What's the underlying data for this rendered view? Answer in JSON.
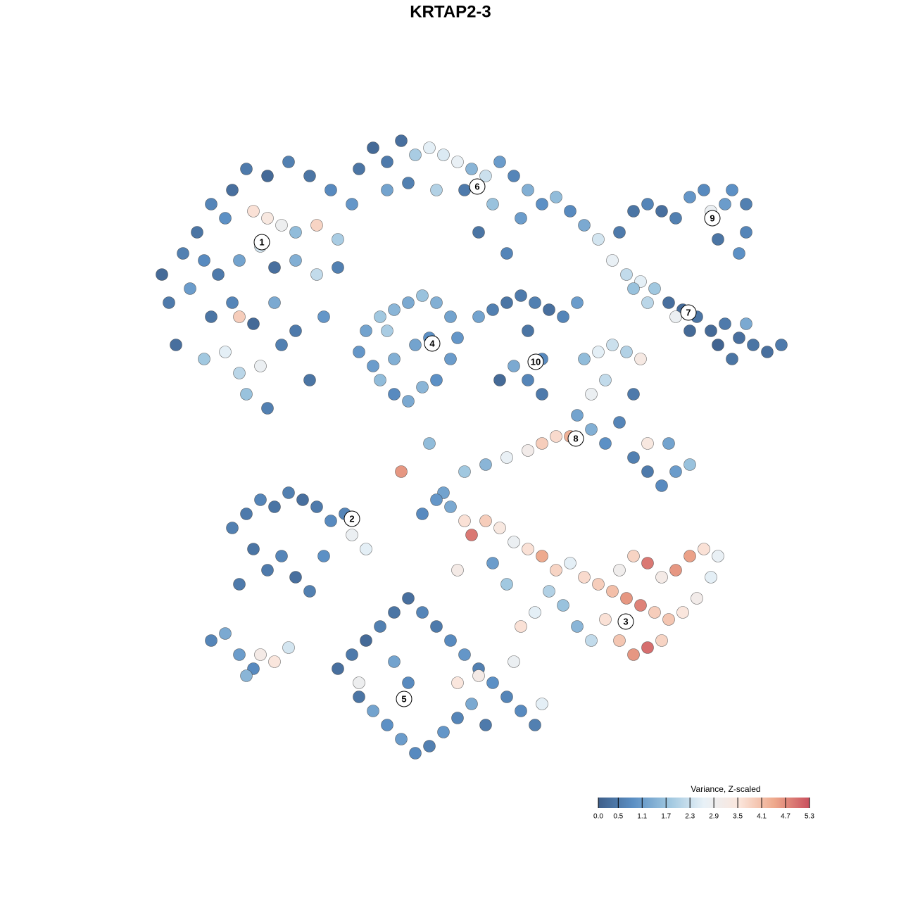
{
  "chart_data": {
    "type": "scatter",
    "title": "KRTAP2-3",
    "xlim": [
      0,
      93
    ],
    "ylim": [
      0,
      90.5
    ],
    "x": [
      5,
      4,
      3,
      6,
      8,
      10,
      13,
      15,
      18,
      21,
      24,
      27,
      30,
      12,
      16,
      18,
      20,
      22,
      25,
      28,
      9,
      11,
      14,
      17,
      19,
      22,
      25,
      28,
      7,
      10,
      13,
      16,
      19,
      22,
      9,
      12,
      14,
      15,
      17,
      20,
      24,
      26,
      14,
      18,
      31,
      33,
      35,
      37,
      39,
      41,
      43,
      45,
      47,
      49,
      51,
      53,
      55,
      57,
      59,
      61,
      63,
      65,
      67,
      69,
      71,
      73,
      35,
      38,
      42,
      46,
      50,
      54,
      48,
      52,
      68,
      70,
      72,
      74,
      76,
      78,
      80,
      81,
      83,
      84,
      86,
      86,
      85,
      82,
      75,
      77,
      79,
      81,
      83,
      85,
      87,
      89,
      91,
      78,
      82,
      84,
      86,
      76,
      72,
      70,
      31,
      32,
      34,
      36,
      38,
      40,
      42,
      44,
      45,
      44,
      42,
      40,
      38,
      36,
      34,
      33,
      36,
      39,
      41,
      35,
      48,
      50,
      52,
      54,
      56,
      58,
      60,
      62,
      55,
      57,
      55,
      57,
      53,
      51,
      63,
      65,
      67,
      69,
      71,
      66,
      64,
      62,
      64,
      66,
      68,
      70,
      72,
      74,
      76,
      78,
      75,
      70,
      72,
      61,
      59,
      57,
      55,
      52,
      49,
      46,
      43,
      37,
      41,
      13,
      15,
      17,
      19,
      21,
      23,
      25,
      27,
      29,
      30,
      32,
      16,
      18,
      20,
      22,
      24,
      26,
      14,
      40,
      42,
      44,
      46,
      47,
      49,
      51,
      53,
      55,
      57,
      59,
      61,
      63,
      65,
      67,
      69,
      71,
      73,
      75,
      77,
      79,
      81,
      82,
      80,
      78,
      76,
      74,
      72,
      70,
      68,
      66,
      68,
      70,
      72,
      74,
      64,
      62,
      60,
      58,
      56,
      50,
      45,
      52,
      54,
      28,
      30,
      32,
      34,
      36,
      38,
      40,
      42,
      44,
      46,
      48,
      50,
      52,
      54,
      56,
      31,
      33,
      35,
      37,
      39,
      41,
      43,
      45,
      47,
      49,
      38,
      36,
      31,
      45,
      48,
      53,
      57,
      10,
      12,
      14,
      16,
      17,
      19,
      21,
      15
    ],
    "y": [
      60,
      66,
      70,
      73,
      76,
      80,
      82,
      85,
      84,
      86,
      84,
      82,
      80,
      78,
      79,
      78,
      77,
      76,
      77,
      75,
      72,
      70,
      72,
      74,
      71,
      72,
      70,
      71,
      68,
      64,
      66,
      63,
      66,
      62,
      58,
      59,
      56,
      53,
      57,
      60,
      55,
      64,
      64,
      51,
      85,
      88,
      86,
      89,
      87,
      88,
      87,
      86,
      85,
      84,
      86,
      84,
      82,
      80,
      81,
      79,
      77,
      75,
      72,
      70,
      69,
      68,
      82,
      83,
      82,
      82,
      80,
      78,
      76,
      73,
      76,
      79,
      80,
      79,
      78,
      81,
      82,
      79,
      80,
      82,
      80,
      76,
      73,
      75,
      66,
      65,
      64,
      62,
      63,
      61,
      60,
      59,
      60,
      62,
      60,
      58,
      63,
      64,
      66,
      68,
      59,
      62,
      64,
      65,
      66,
      67,
      66,
      64,
      61,
      58,
      55,
      54,
      52,
      53,
      55,
      57,
      58,
      60,
      61,
      62,
      64,
      65,
      66,
      67,
      66,
      65,
      64,
      66,
      62,
      58,
      55,
      53,
      57,
      55,
      58,
      59,
      60,
      59,
      58,
      55,
      53,
      50,
      48,
      46,
      49,
      44,
      42,
      40,
      42,
      43,
      46,
      53,
      46,
      47,
      47,
      46,
      45,
      44,
      43,
      42,
      39,
      42,
      46,
      34,
      36,
      38,
      37,
      39,
      38,
      37,
      35,
      36,
      33,
      31,
      31,
      28,
      30,
      27,
      25,
      30,
      26,
      36,
      38,
      37,
      35,
      33,
      35,
      34,
      32,
      31,
      30,
      28,
      29,
      27,
      26,
      25,
      24,
      23,
      22,
      21,
      22,
      24,
      27,
      30,
      31,
      30,
      28,
      27,
      29,
      30,
      28,
      21,
      18,
      16,
      17,
      18,
      18,
      20,
      23,
      25,
      22,
      29,
      28,
      26,
      20,
      14,
      16,
      18,
      20,
      22,
      24,
      22,
      20,
      18,
      16,
      14,
      12,
      10,
      8,
      6,
      10,
      8,
      6,
      4,
      2,
      3,
      5,
      7,
      9,
      6,
      12,
      15,
      12,
      12,
      13,
      15,
      9,
      18,
      19,
      16,
      14,
      16,
      15,
      17,
      13
    ],
    "values": [
      0.3,
      0.5,
      0.2,
      0.6,
      0.4,
      0.7,
      0.3,
      0.5,
      0.2,
      0.6,
      0.4,
      0.8,
      1.0,
      0.9,
      3.6,
      3.4,
      2.9,
      1.6,
      3.8,
      1.9,
      0.8,
      0.5,
      1.2,
      2.4,
      0.3,
      1.4,
      2.2,
      0.6,
      1.1,
      0.4,
      0.7,
      0.2,
      1.3,
      0.5,
      1.8,
      2.6,
      2.1,
      1.7,
      2.8,
      0.6,
      0.4,
      1.0,
      3.9,
      0.6,
      0.4,
      0.2,
      0.5,
      0.3,
      1.9,
      2.6,
      2.5,
      2.7,
      1.5,
      2.3,
      1.1,
      0.7,
      1.4,
      0.9,
      1.6,
      0.8,
      1.3,
      2.4,
      2.7,
      2.2,
      2.6,
      1.8,
      1.2,
      0.6,
      2.0,
      0.5,
      1.7,
      1.1,
      0.4,
      0.7,
      0.5,
      0.4,
      0.7,
      0.3,
      0.6,
      1.0,
      0.8,
      2.8,
      1.1,
      0.9,
      0.6,
      0.7,
      0.9,
      0.4,
      0.3,
      0.2,
      0.4,
      0.2,
      0.5,
      0.3,
      0.4,
      0.3,
      0.5,
      0.2,
      0.1,
      0.4,
      1.3,
      2.8,
      2.1,
      1.7,
      1.0,
      1.2,
      1.8,
      1.5,
      1.3,
      1.7,
      1.4,
      1.2,
      1.0,
      1.1,
      0.9,
      1.5,
      1.3,
      0.8,
      1.6,
      1.1,
      1.4,
      1.2,
      0.9,
      1.9,
      1.2,
      0.6,
      0.4,
      0.5,
      0.6,
      0.3,
      0.7,
      1.1,
      0.4,
      0.8,
      0.7,
      0.5,
      1.3,
      0.2,
      1.6,
      2.6,
      2.3,
      2.0,
      3.3,
      2.2,
      2.8,
      1.2,
      1.4,
      0.9,
      0.7,
      0.6,
      0.5,
      0.8,
      1.1,
      1.7,
      1.2,
      0.5,
      3.4,
      4.3,
      3.7,
      3.9,
      3.1,
      2.7,
      1.5,
      1.8,
      1.2,
      4.6,
      1.6,
      0.6,
      0.5,
      0.7,
      0.4,
      0.6,
      0.3,
      0.5,
      0.8,
      0.7,
      2.8,
      2.6,
      0.4,
      0.5,
      0.7,
      0.3,
      0.6,
      0.9,
      0.5,
      0.8,
      1.0,
      1.3,
      3.6,
      4.9,
      3.9,
      3.4,
      2.8,
      3.6,
      4.4,
      3.8,
      2.6,
      3.7,
      3.9,
      4.1,
      4.6,
      4.8,
      3.9,
      4.0,
      3.5,
      3.1,
      2.6,
      2.7,
      3.6,
      4.5,
      4.6,
      3.2,
      4.9,
      3.8,
      3.0,
      3.6,
      4.0,
      4.6,
      5.0,
      3.8,
      2.2,
      1.5,
      1.7,
      2.0,
      2.6,
      1.1,
      3.2,
      1.8,
      3.6,
      0.3,
      0.5,
      0.2,
      0.6,
      0.4,
      0.3,
      0.7,
      0.5,
      0.8,
      1.0,
      0.6,
      0.9,
      0.7,
      0.8,
      0.6,
      0.4,
      1.2,
      0.9,
      1.1,
      0.8,
      0.6,
      1.0,
      0.7,
      1.3,
      0.5,
      0.8,
      1.2,
      2.9,
      3.5,
      3.2,
      2.8,
      2.6,
      0.7,
      1.3,
      1.1,
      0.8,
      3.2,
      3.5,
      2.4,
      1.5
    ],
    "cluster_labels": {
      "labels": [
        "1",
        "2",
        "3",
        "4",
        "5",
        "6",
        "7",
        "8",
        "9",
        "10"
      ],
      "x": [
        17.2,
        30,
        68.9,
        41.4,
        37.4,
        47.8,
        77.8,
        61.8,
        81.2,
        56.1
      ],
      "y": [
        74.6,
        35.3,
        20.7,
        60.2,
        9.7,
        82.5,
        64.6,
        46.7,
        78,
        57.6
      ]
    },
    "colorbar": {
      "title": "Variance, Z-scaled",
      "clim": [
        0,
        5.3
      ],
      "colors": [
        "#3e5f8a",
        "#5b8fc4",
        "#9ec6df",
        "#e8f1f7",
        "#fbe6dc",
        "#eea98c",
        "#c9505e"
      ],
      "ticks": [
        {
          "value": 0,
          "label": "0.0"
        },
        0.5,
        1.1,
        1.7,
        2.3,
        2.9,
        3.5,
        4.1,
        4.7,
        5.3
      ]
    }
  }
}
